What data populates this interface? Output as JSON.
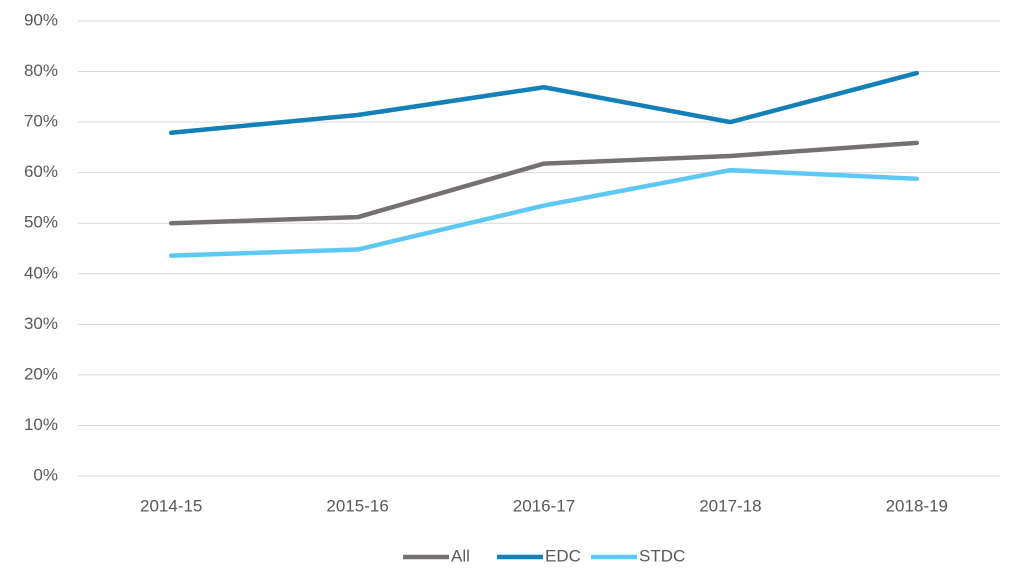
{
  "chart_data": {
    "type": "line",
    "categories": [
      "2014-15",
      "2015-16",
      "2016-17",
      "2017-18",
      "2018-19"
    ],
    "series": [
      {
        "name": "All",
        "color": "#767171",
        "values": [
          50,
          51.2,
          61.8,
          63.3,
          65.9
        ]
      },
      {
        "name": "EDC",
        "color": "#1380b8",
        "values": [
          67.9,
          71.4,
          76.9,
          70,
          79.7
        ]
      },
      {
        "name": "STDC",
        "color": "#5ec8f5",
        "values": [
          43.6,
          44.8,
          53.5,
          60.5,
          58.8
        ]
      }
    ],
    "ylim": [
      0,
      90
    ],
    "yticks": [
      {
        "value": 0,
        "label": "0%"
      },
      {
        "value": 10,
        "label": "10%"
      },
      {
        "value": 20,
        "label": "20%"
      },
      {
        "value": 30,
        "label": "30%"
      },
      {
        "value": 40,
        "label": "40%"
      },
      {
        "value": 50,
        "label": "50%"
      },
      {
        "value": 60,
        "label": "60%"
      },
      {
        "value": 70,
        "label": "70%"
      },
      {
        "value": 80,
        "label": "80%"
      },
      {
        "value": 90,
        "label": "90%"
      }
    ],
    "grid": true,
    "legend": "bottom"
  }
}
